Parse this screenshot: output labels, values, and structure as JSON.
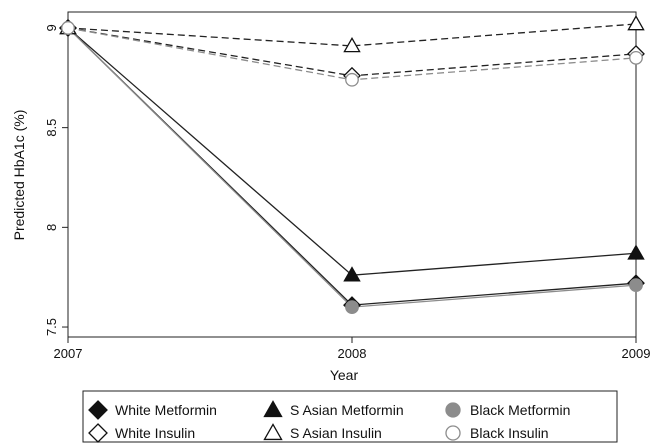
{
  "chart_data": {
    "type": "line",
    "xlabel": "Year",
    "ylabel": "Predicted HbA1c (%)",
    "x": [
      2007,
      2008,
      2009
    ],
    "x_ticks": [
      "2007",
      "2008",
      "2009"
    ],
    "ylim": [
      7.45,
      9.08
    ],
    "y_ticks": [
      "7.5",
      "8",
      "8.5",
      "9"
    ],
    "grid": false,
    "legend_position": "bottom",
    "series": [
      {
        "name": "White Metformin",
        "values": [
          9.0,
          7.61,
          7.72
        ],
        "marker": "diamond-filled",
        "line_style": "solid"
      },
      {
        "name": "S Asian Metformin",
        "values": [
          9.0,
          7.76,
          7.87
        ],
        "marker": "triangle-filled",
        "line_style": "solid"
      },
      {
        "name": "Black Metformin",
        "values": [
          9.0,
          7.6,
          7.71
        ],
        "marker": "circle-filled",
        "line_style": "solid"
      },
      {
        "name": "White Insulin",
        "values": [
          9.0,
          8.76,
          8.87
        ],
        "marker": "diamond-open",
        "line_style": "dashed"
      },
      {
        "name": "S Asian Insulin",
        "values": [
          9.0,
          8.91,
          9.02
        ],
        "marker": "triangle-open",
        "line_style": "dashed"
      },
      {
        "name": "Black Insulin",
        "values": [
          9.0,
          8.74,
          8.85
        ],
        "marker": "circle-open",
        "line_style": "dashed"
      }
    ]
  }
}
